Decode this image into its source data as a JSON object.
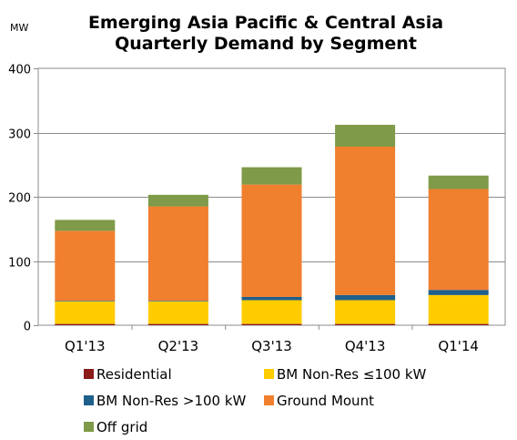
{
  "chart_data": {
    "type": "bar",
    "stacked": true,
    "title": "Emerging Asia Pacific & Central Asia",
    "subtitle": "Quarterly Demand by Segment",
    "ylabel": "MW",
    "xlabel": "",
    "ylim": [
      0,
      400
    ],
    "yticks": [
      0,
      100,
      200,
      300,
      400
    ],
    "grid": true,
    "legend_position": "bottom",
    "categories": [
      "Q1'13",
      "Q2'13",
      "Q3'13",
      "Q4'13",
      "Q1'14"
    ],
    "series": [
      {
        "name": "Residential",
        "color": "#8B1A1A",
        "values": [
          2,
          2,
          2,
          2,
          2
        ]
      },
      {
        "name": "BM Non-Res ≤100 kW",
        "color": "#FFCC00",
        "values": [
          35,
          35,
          37,
          37,
          45
        ]
      },
      {
        "name": "BM Non-Res >100 kW",
        "color": "#1F5F8B",
        "values": [
          1,
          1,
          5,
          8,
          8
        ]
      },
      {
        "name": "Ground Mount",
        "color": "#F07F2E",
        "values": [
          109,
          147,
          175,
          231,
          157
        ]
      },
      {
        "name": "Off grid",
        "color": "#7F9A48",
        "values": [
          17,
          18,
          27,
          34,
          21
        ]
      }
    ]
  }
}
